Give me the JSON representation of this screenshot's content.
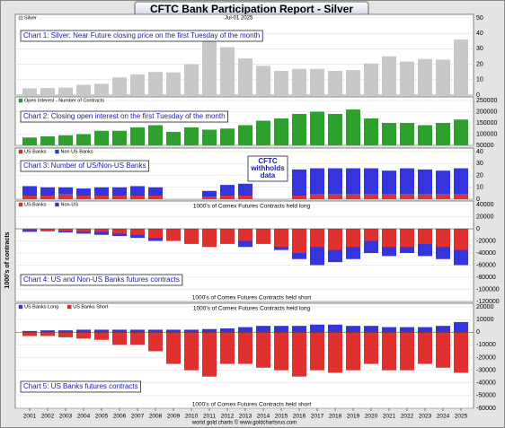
{
  "header": {
    "title": "CFTC Bank Participation Report - Silver",
    "y_label": "1000's of contracts",
    "credit": "world gold charts © www.goldchartsrus.com"
  },
  "chart_data": [
    {
      "type": "bar",
      "title": "Chart 1: Silver: Near Future closing price on the first Tuesday of the month",
      "annotation": "Jul-01 2025",
      "x": [
        2001,
        2002,
        2003,
        2004,
        2005,
        2006,
        2007,
        2008,
        2009,
        2010,
        2011,
        2012,
        2013,
        2014,
        2015,
        2016,
        2017,
        2018,
        2019,
        2020,
        2021,
        2022,
        2023,
        2024,
        2025
      ],
      "xlim": [
        2000.2,
        2025.7
      ],
      "series": [
        {
          "name": "Silver",
          "color": "#c8c8c8",
          "values": [
            4.4,
            4.6,
            4.9,
            6.7,
            7.3,
            11.5,
            13.4,
            15,
            14.7,
            20,
            35,
            31,
            23.8,
            19,
            15.7,
            17,
            17,
            15.7,
            16.2,
            20.5,
            25.1,
            21.7,
            23.4,
            23,
            36
          ]
        }
      ],
      "ylim": [
        0,
        50
      ],
      "yticks": [
        0,
        10,
        20,
        30,
        40,
        50
      ],
      "grid": true
    },
    {
      "type": "bar",
      "title": "Chart 2: Closing open interest on the first Tuesday of the month",
      "x": [
        2001,
        2002,
        2003,
        2004,
        2005,
        2006,
        2007,
        2008,
        2009,
        2010,
        2011,
        2012,
        2013,
        2014,
        2015,
        2016,
        2017,
        2018,
        2019,
        2020,
        2021,
        2022,
        2023,
        2024,
        2025
      ],
      "xlim": [
        2000.2,
        2025.7
      ],
      "series": [
        {
          "name": "Open Interest - Number of Contracts",
          "color": "#2ea02e",
          "values": [
            85000,
            90000,
            95000,
            100000,
            115000,
            115000,
            130000,
            140000,
            110000,
            130000,
            120000,
            125000,
            140000,
            160000,
            170000,
            190000,
            200000,
            190000,
            210000,
            170000,
            150000,
            150000,
            140000,
            150000,
            165000
          ]
        }
      ],
      "ylim": [
        50000,
        250000
      ],
      "yticks": [
        50000,
        100000,
        150000,
        200000,
        250000
      ],
      "grid": true
    },
    {
      "type": "stacked_bar",
      "title": "Chart 3: Number of US/Non-US Banks",
      "annotation": [
        "CFTC",
        "withholds",
        "data"
      ],
      "x": [
        2001,
        2002,
        2003,
        2004,
        2005,
        2006,
        2007,
        2008,
        2009,
        2010,
        2011,
        2012,
        2013,
        2014,
        2015,
        2016,
        2017,
        2018,
        2019,
        2020,
        2021,
        2022,
        2023,
        2024,
        2025
      ],
      "xlim": [
        2000.2,
        2025.7
      ],
      "series": [
        {
          "name": "US Banks",
          "color": "#e03030",
          "values": [
            3,
            3,
            4,
            3,
            3,
            3,
            3,
            3,
            null,
            null,
            2,
            3,
            3,
            null,
            null,
            3,
            4,
            4,
            4,
            4,
            4,
            4,
            4,
            4,
            4
          ]
        },
        {
          "name": "Non US Banks",
          "color": "#3535e0",
          "values": [
            8,
            7,
            6,
            6,
            7,
            7,
            8,
            7,
            null,
            null,
            5,
            9,
            10,
            null,
            null,
            22,
            22,
            22,
            22,
            22,
            20,
            22,
            21,
            20,
            22
          ]
        }
      ],
      "ylim": [
        0,
        40
      ],
      "yticks": [
        0,
        10,
        20,
        30,
        40
      ],
      "grid": true
    },
    {
      "type": "bar",
      "title": "Chart 4: US and Non-US Banks futures contracts",
      "annotation": [
        "1000's of Comex Futures Contracts held long",
        "1000's of Comex Futures Contracts held short"
      ],
      "x": [
        2001,
        2002,
        2003,
        2004,
        2005,
        2006,
        2007,
        2008,
        2009,
        2010,
        2011,
        2012,
        2013,
        2014,
        2015,
        2016,
        2017,
        2018,
        2019,
        2020,
        2021,
        2022,
        2023,
        2024,
        2025
      ],
      "xlim": [
        2000.2,
        2025.7
      ],
      "series": [
        {
          "name": "US Banks",
          "color": "#e03030",
          "values": [
            -2000,
            -3000,
            -4000,
            -5000,
            -5000,
            -8000,
            -10000,
            -15000,
            -20000,
            -25000,
            -30000,
            -25000,
            -20000,
            -25000,
            -30000,
            -40000,
            -30000,
            -35000,
            -30000,
            -20000,
            -30000,
            -30000,
            -25000,
            -30000,
            -35000
          ]
        },
        {
          "name": "Non-US",
          "color": "#3535e0",
          "values": [
            -5000,
            -4000,
            -6000,
            -8000,
            -10000,
            -12000,
            -15000,
            -20000,
            -15000,
            -20000,
            -20000,
            -15000,
            -30000,
            -20000,
            -35000,
            -50000,
            -60000,
            -55000,
            -50000,
            -40000,
            -45000,
            -40000,
            -45000,
            -50000,
            -60000
          ]
        }
      ],
      "ylim": [
        -120000,
        40000
      ],
      "yticks": [
        -120000,
        -100000,
        -80000,
        -60000,
        -40000,
        -20000,
        0,
        20000,
        40000
      ],
      "grid": true
    },
    {
      "type": "bar",
      "title": "Chart 5: US Banks futures contracts",
      "annotation": [
        "1000's of Comex Futures Contracts held long",
        "1000's of Comex Futures Contracts held short"
      ],
      "x": [
        2001,
        2002,
        2003,
        2004,
        2005,
        2006,
        2007,
        2008,
        2009,
        2010,
        2011,
        2012,
        2013,
        2014,
        2015,
        2016,
        2017,
        2018,
        2019,
        2020,
        2021,
        2022,
        2023,
        2024,
        2025
      ],
      "xlim": [
        2000.2,
        2025.7
      ],
      "series": [
        {
          "name": "US Banks Long",
          "color": "#3535e0",
          "values": [
            1000,
            1500,
            1500,
            2000,
            2000,
            2000,
            2000,
            2000,
            2000,
            2000,
            2500,
            3000,
            4000,
            5000,
            5000,
            5000,
            6000,
            6000,
            5000,
            5000,
            4000,
            4000,
            4000,
            5000,
            8000
          ]
        },
        {
          "name": "US Banks Short",
          "color": "#e03030",
          "values": [
            -3000,
            -3000,
            -4000,
            -5000,
            -6000,
            -10000,
            -10000,
            -15000,
            -25000,
            -30000,
            -35000,
            -25000,
            -25000,
            -28000,
            -30000,
            -35000,
            -30000,
            -32000,
            -30000,
            -25000,
            -30000,
            -30000,
            -25000,
            -28000,
            -32000
          ]
        }
      ],
      "ylim": [
        -60000,
        20000
      ],
      "yticks": [
        -60000,
        -50000,
        -40000,
        -30000,
        -20000,
        -10000,
        0,
        10000,
        20000
      ],
      "grid": true
    }
  ]
}
